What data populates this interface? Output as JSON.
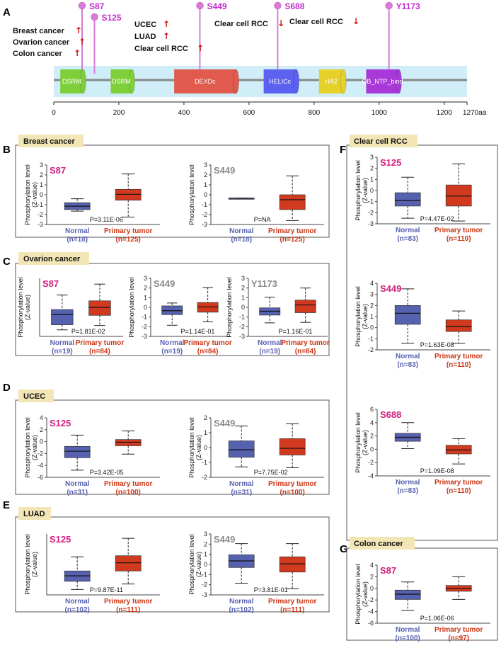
{
  "panel_labels": [
    "A",
    "B",
    "C",
    "D",
    "E",
    "F",
    "G"
  ],
  "colors": {
    "normal": "#5661b0",
    "tumor": "#d13a1f",
    "normal_text": "#5661b0",
    "tumor_text": "#cc3311",
    "site_pink": "#d41f82",
    "site_gray": "#8a8a8a",
    "arrow": "#cc1111",
    "lollipop": "#d97ad6",
    "site_label": "#c52bd0",
    "header_bg": "#f2e6b6"
  },
  "domain_map": {
    "axis_ticks": [
      "0",
      "200",
      "400",
      "600",
      "800",
      "1000",
      "1200",
      "1270aa"
    ],
    "domains": [
      {
        "name": "DSRM",
        "color": "#7fcf3a",
        "start": 20,
        "end": 90
      },
      {
        "name": "DSRM",
        "color": "#7fcf3a",
        "start": 175,
        "end": 240
      },
      {
        "name": "DEXDc",
        "color": "#e05a4e",
        "start": 370,
        "end": 560
      },
      {
        "name": "HELICc",
        "color": "#5c61f0",
        "start": 645,
        "end": 745
      },
      {
        "name": "HA2",
        "color": "#e6d02a",
        "start": 815,
        "end": 890
      },
      {
        "name": "OB_NTP_bind",
        "color": "#a838d8",
        "start": 960,
        "end": 1060
      }
    ],
    "sites": [
      {
        "label": "S87",
        "position": 87,
        "level": "high",
        "label_color": "#c52bd0"
      },
      {
        "label": "S125",
        "position": 125,
        "level": "low",
        "label_color": "#c52bd0"
      },
      {
        "label": "S449",
        "position": 449,
        "level": "high",
        "label_color": "#c52bd0"
      },
      {
        "label": "S688",
        "position": 688,
        "level": "high",
        "label_color": "#c52bd0"
      },
      {
        "label": "Y1173",
        "position": 1030,
        "level": "high",
        "label_color": "#c52bd0"
      }
    ],
    "annotations": [
      {
        "text": "Breast cancer",
        "dir": "up"
      },
      {
        "text": "Ovarion cancer",
        "dir": "up"
      },
      {
        "text": "Colon cancer",
        "dir": "up"
      },
      {
        "text": "UCEC",
        "dir": "up"
      },
      {
        "text": "LUAD",
        "dir": "up"
      },
      {
        "text": "Clear cell RCC",
        "dir": "up"
      },
      {
        "text": "Clear cell RCC",
        "dir": "down"
      },
      {
        "text": "Clear cell RCC",
        "dir": "down"
      }
    ]
  },
  "chart_data": [
    {
      "type": "box",
      "panel": "B",
      "cancer": "Breast cancer",
      "site": "S87",
      "site_color": "pink",
      "ylabel": "Phosphorylation level (Z-value)",
      "yticks": [
        -3,
        -2,
        -1,
        0,
        1,
        2,
        3
      ],
      "ylim": [
        -3,
        3
      ],
      "pvalue": "P=3.11E-06",
      "groups": [
        {
          "name": "Normal",
          "n_label": "(n=18)",
          "min": -1.65,
          "q1": -1.5,
          "median": -1.15,
          "q3": -0.8,
          "max": -0.4
        },
        {
          "name": "Primary tumor",
          "n_label": "(n=125)",
          "min": -2.25,
          "q1": -0.55,
          "median": 0.05,
          "q3": 0.55,
          "max": 2.1
        }
      ]
    },
    {
      "type": "box",
      "panel": "B",
      "cancer": "Breast cancer",
      "site": "S449",
      "site_color": "gray",
      "ylabel": "Phosphorylation level",
      "yticks": [
        -3,
        -2,
        -1,
        0,
        1,
        2,
        3
      ],
      "ylim": [
        -3,
        3
      ],
      "pvalue": "P=NA",
      "groups": [
        {
          "name": "Normal",
          "n_label": "(n=18)",
          "min": -0.35,
          "q1": -0.35,
          "median": -0.35,
          "q3": -0.35,
          "max": -0.35
        },
        {
          "name": "Primary tumor",
          "n_label": "(n=125)",
          "min": -2.6,
          "q1": -1.5,
          "median": -0.5,
          "q3": 0.0,
          "max": 1.9
        }
      ]
    },
    {
      "type": "box",
      "panel": "C",
      "cancer": "Ovarion cancer",
      "site": "S87",
      "site_color": "pink",
      "ylabel": "Phosphorylation level (Z-value)",
      "yticks": [],
      "ylim": [
        -2,
        2
      ],
      "pvalue": "P=1.81E-02",
      "groups": [
        {
          "name": "Normal",
          "n_label": "(n=19)",
          "min": -1.55,
          "q1": -1.2,
          "median": -0.5,
          "q3": -0.15,
          "max": 0.85
        },
        {
          "name": "Primary tumor",
          "n_label": "(n=84)",
          "min": -1.25,
          "q1": -0.55,
          "median": 0.0,
          "q3": 0.45,
          "max": 1.6
        }
      ]
    },
    {
      "type": "box",
      "panel": "C",
      "cancer": "Ovarion cancer",
      "site": "S449",
      "site_color": "gray",
      "ylabel": "Phosphorylation level",
      "yticks": [
        -3,
        -2,
        -1,
        0,
        1,
        2,
        3
      ],
      "ylim": [
        -3,
        3
      ],
      "pvalue": "P=1.14E-01",
      "groups": [
        {
          "name": "Normal",
          "n_label": "(n=19)",
          "min": -1.85,
          "q1": -0.75,
          "median": -0.35,
          "q3": 0.15,
          "max": 0.45
        },
        {
          "name": "Primary tumor",
          "n_label": "(n=84)",
          "min": -1.5,
          "q1": -0.5,
          "median": 0.05,
          "q3": 0.5,
          "max": 2.05
        }
      ]
    },
    {
      "type": "box",
      "panel": "C",
      "cancer": "Ovarion cancer",
      "site": "Y1173",
      "site_color": "gray",
      "ylabel": "Phosphorylation level",
      "yticks": [
        -3,
        -2,
        -1,
        0,
        1,
        2,
        3
      ],
      "ylim": [
        -3,
        3
      ],
      "pvalue": "P=1.16E-01",
      "groups": [
        {
          "name": "Normal",
          "n_label": "(n=19)",
          "min": -1.6,
          "q1": -0.8,
          "median": -0.4,
          "q3": -0.05,
          "max": 1.05
        },
        {
          "name": "Primary tumor",
          "n_label": "(n=84)",
          "min": -1.55,
          "q1": -0.55,
          "median": 0.25,
          "q3": 0.75,
          "max": 2.0
        }
      ]
    },
    {
      "type": "box",
      "panel": "D",
      "cancer": "UCEC",
      "site": "S125",
      "site_color": "pink",
      "ylabel": "Phosphorylation level (Z-value)",
      "yticks": [
        -6,
        -4,
        -2,
        0,
        2,
        4
      ],
      "ylim": [
        -6,
        4
      ],
      "pvalue": "P=3.42E-05",
      "groups": [
        {
          "name": "Normal",
          "n_label": "(n=31)",
          "min": -4.8,
          "q1": -2.7,
          "median": -1.6,
          "q3": -0.8,
          "max": 1.1
        },
        {
          "name": "Primary tumor",
          "n_label": "(n=100)",
          "min": -2.1,
          "q1": -0.7,
          "median": -0.1,
          "q3": 0.35,
          "max": 1.8
        }
      ]
    },
    {
      "type": "box",
      "panel": "D",
      "cancer": "UCEC",
      "site": "S449",
      "site_color": "gray",
      "ylabel": "Phosphorylation level (Z-value)",
      "yticks": [
        -2,
        -1,
        0,
        1,
        2
      ],
      "ylim": [
        -2,
        2
      ],
      "pvalue": "P=7.75E-02",
      "groups": [
        {
          "name": "Normal",
          "n_label": "(n=31)",
          "min": -1.3,
          "q1": -0.65,
          "median": -0.15,
          "q3": 0.45,
          "max": 1.45
        },
        {
          "name": "Primary tumor",
          "n_label": "(n=100)",
          "min": -1.35,
          "q1": -0.5,
          "median": -0.05,
          "q3": 0.6,
          "max": 1.6
        }
      ]
    },
    {
      "type": "box",
      "panel": "E",
      "cancer": "LUAD",
      "site": "S125",
      "site_color": "pink",
      "ylabel": "Phosphorylation level (Z-value)",
      "yticks": [],
      "ylim": [
        -2.6,
        3
      ],
      "pvalue": "P=9.87E-11",
      "groups": [
        {
          "name": "Normal",
          "n_label": "(n=102)",
          "min": -2.1,
          "q1": -1.35,
          "median": -0.85,
          "q3": -0.4,
          "max": 0.9
        },
        {
          "name": "Primary tumor",
          "n_label": "(n=111)",
          "min": -1.6,
          "q1": -0.4,
          "median": 0.35,
          "q3": 1.0,
          "max": 2.6
        }
      ]
    },
    {
      "type": "box",
      "panel": "E",
      "cancer": "LUAD",
      "site": "S449",
      "site_color": "gray",
      "ylabel": "Phosphorylation level (Z-value)",
      "yticks": [
        -3,
        -2,
        -1,
        0,
        1,
        2,
        3
      ],
      "ylim": [
        -3,
        3
      ],
      "pvalue": "P=3.81E-01",
      "groups": [
        {
          "name": "Normal",
          "n_label": "(n=102)",
          "min": -1.85,
          "q1": -0.3,
          "median": 0.35,
          "q3": 0.95,
          "max": 2.05
        },
        {
          "name": "Primary tumor",
          "n_label": "(n=111)",
          "min": -2.4,
          "q1": -0.75,
          "median": 0.05,
          "q3": 0.75,
          "max": 2.05
        }
      ]
    },
    {
      "type": "box",
      "panel": "F",
      "cancer": "Clear cell RCC",
      "site": "S125",
      "site_color": "pink",
      "ylabel": "Phosphorylation level (Z-value)",
      "yticks": [
        -3,
        -2,
        -1,
        0,
        1,
        2,
        3
      ],
      "ylim": [
        -3,
        3
      ],
      "pvalue": "P=4.47E-02",
      "groups": [
        {
          "name": "Normal",
          "n_label": "(n=83)",
          "min": -2.5,
          "q1": -1.4,
          "median": -0.9,
          "q3": -0.2,
          "max": 1.2
        },
        {
          "name": "Primary tumor",
          "n_label": "(n=110)",
          "min": -2.75,
          "q1": -1.4,
          "median": -0.5,
          "q3": 0.5,
          "max": 2.4
        }
      ]
    },
    {
      "type": "box",
      "panel": "F",
      "cancer": "Clear cell RCC",
      "site": "S449",
      "site_color": "pink",
      "ylabel": "Phosphorylation level (Z-value)",
      "yticks": [
        -2,
        -1,
        0,
        1,
        2,
        3,
        4
      ],
      "ylim": [
        -2,
        4
      ],
      "pvalue": "P=1.63E-08",
      "groups": [
        {
          "name": "Normal",
          "n_label": "(n=83)",
          "min": -1.4,
          "q1": 0.3,
          "median": 1.3,
          "q3": 2.0,
          "max": 3.5
        },
        {
          "name": "Primary tumor",
          "n_label": "(n=110)",
          "min": -1.4,
          "q1": -0.35,
          "median": 0.1,
          "q3": 0.7,
          "max": 1.5
        }
      ]
    },
    {
      "type": "box",
      "panel": "F",
      "cancer": "Clear cell RCC",
      "site": "S688",
      "site_color": "pink",
      "ylabel": "Phosphorylation level (Z-value)",
      "yticks": [
        -4,
        -2,
        0,
        2,
        4,
        6
      ],
      "ylim": [
        -4,
        6
      ],
      "pvalue": "P=1.09E-08",
      "groups": [
        {
          "name": "Normal",
          "n_label": "(n=83)",
          "min": 0.1,
          "q1": 1.2,
          "median": 1.8,
          "q3": 2.4,
          "max": 4.0
        },
        {
          "name": "Primary tumor",
          "n_label": "(n=110)",
          "min": -2.2,
          "q1": -0.7,
          "median": -0.1,
          "q3": 0.6,
          "max": 1.6
        }
      ]
    },
    {
      "type": "box",
      "panel": "G",
      "cancer": "Colon cancer",
      "site": "S87",
      "site_color": "pink",
      "ylabel": "Phosphorylation level (Z-value)",
      "yticks": [
        -6,
        -4,
        -2,
        0,
        2,
        4
      ],
      "ylim": [
        -6,
        4
      ],
      "pvalue": "P=1.06E-06",
      "groups": [
        {
          "name": "Normal",
          "n_label": "(n=100)",
          "min": -3.8,
          "q1": -1.9,
          "median": -1.0,
          "q3": -0.3,
          "max": 1.1
        },
        {
          "name": "Primary tumor",
          "n_label": "(n=97)",
          "min": -1.9,
          "q1": -0.5,
          "median": 0.0,
          "q3": 0.5,
          "max": 2.0
        }
      ]
    }
  ]
}
